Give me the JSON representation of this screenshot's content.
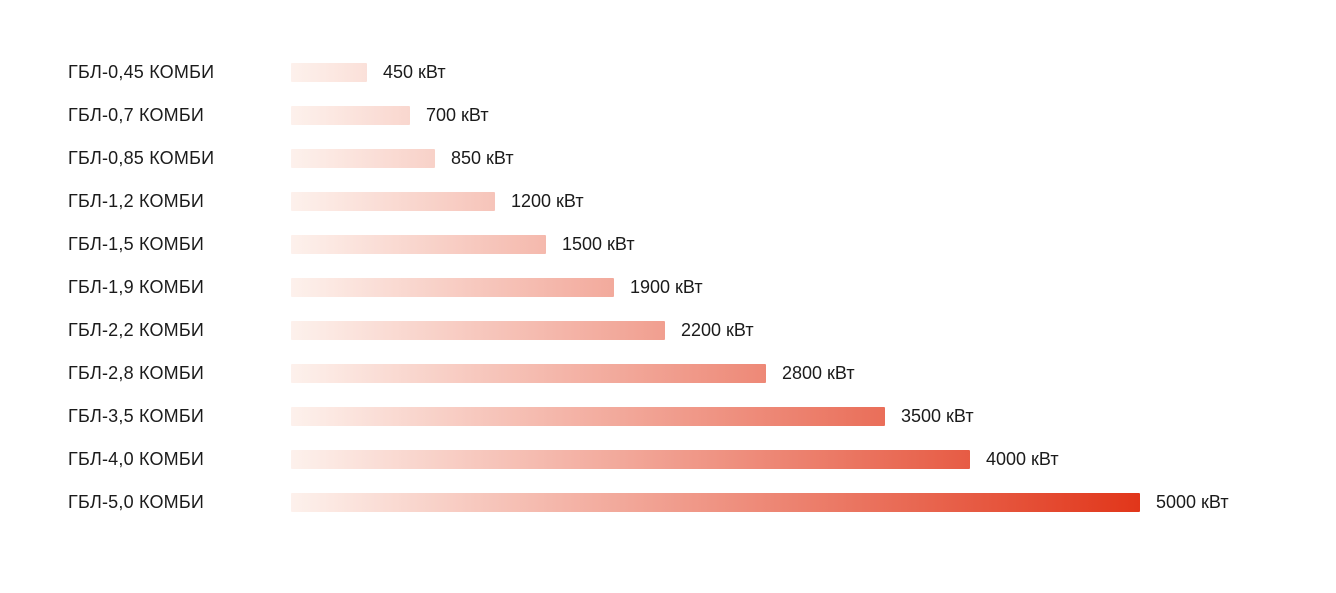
{
  "chart_data": {
    "type": "bar",
    "orientation": "horizontal",
    "title": "",
    "categories": [
      "ГБЛ-0,45 КОМБИ",
      "ГБЛ-0,7 КОМБИ",
      "ГБЛ-0,85 КОМБИ",
      "ГБЛ-1,2 КОМБИ",
      "ГБЛ-1,5 КОМБИ",
      "ГБЛ-1,9 КОМБИ",
      "ГБЛ-2,2 КОМБИ",
      "ГБЛ-2,8 КОМБИ",
      "ГБЛ-3,5 КОМБИ",
      "ГБЛ-4,0 КОМБИ",
      "ГБЛ-5,0 КОМБИ"
    ],
    "values": [
      450,
      700,
      850,
      1200,
      1500,
      1900,
      2200,
      2800,
      3500,
      4000,
      5000
    ],
    "value_labels": [
      "450 кВт",
      "700 кВт",
      "850 кВт",
      "1200 кВт",
      "1500 кВт",
      "1900 кВт",
      "2200 кВт",
      "2800 кВт",
      "3500 кВт",
      "4000 кВт",
      "5000 кВт"
    ],
    "unit": "кВт",
    "xlim": [
      0,
      5000
    ],
    "grid": false,
    "legend": null,
    "colors": {
      "bar_gradient_start": "#fdf1ec",
      "bar_gradient_end": "#e1361a",
      "text": "#1b1b1b",
      "background": "#ffffff"
    }
  }
}
